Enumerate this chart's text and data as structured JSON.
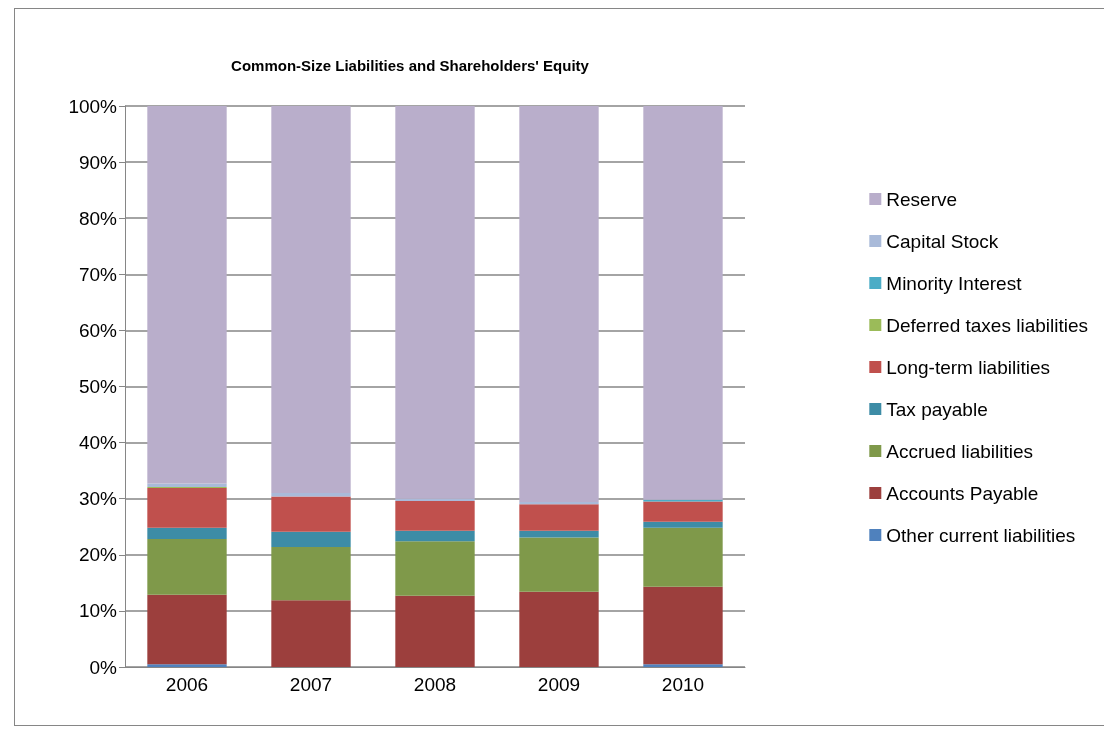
{
  "chart_data": {
    "type": "bar",
    "stacked": true,
    "title": "Common-Size Liabilities and Shareholders' Equity",
    "categories": [
      "2006",
      "2007",
      "2008",
      "2009",
      "2010"
    ],
    "series": [
      {
        "name": "Other current liabilities",
        "color": "#4f81bd",
        "values": [
          0.5,
          0,
          0,
          0,
          0.5
        ]
      },
      {
        "name": "Accounts Payable",
        "color": "#9c3f3d",
        "values": [
          12.4,
          11.9,
          12.7,
          13.4,
          13.8
        ]
      },
      {
        "name": "Accrued liabilities",
        "color": "#7f994a",
        "values": [
          9.9,
          9.5,
          9.7,
          9.7,
          10.5
        ]
      },
      {
        "name": "Tax payable",
        "color": "#3d8ca6",
        "values": [
          2.0,
          2.7,
          1.9,
          1.2,
          1.1
        ]
      },
      {
        "name": "Long-term liabilities",
        "color": "#c0504d",
        "values": [
          7.1,
          6.3,
          5.3,
          4.7,
          3.6
        ]
      },
      {
        "name": "Deferred taxes liabilities",
        "color": "#9bbb59",
        "values": [
          0.2,
          0,
          0,
          0,
          0
        ]
      },
      {
        "name": "Minority Interest",
        "color": "#4bacc6",
        "values": [
          0,
          0,
          0,
          0,
          0.3
        ]
      },
      {
        "name": "Capital Stock",
        "color": "#a9bad9",
        "values": [
          0.6,
          0.6,
          0.4,
          0.4,
          null
        ]
      },
      {
        "name": "Reserve",
        "color": "#b9aecb",
        "values": [
          67.3,
          69.0,
          70.0,
          70.6,
          70.3
        ]
      }
    ],
    "ylim": [
      0,
      100
    ],
    "yticks": [
      {
        "value": 0,
        "label": "0%"
      },
      {
        "value": 10,
        "label": "10%"
      },
      {
        "value": 20,
        "label": "20%"
      },
      {
        "value": 30,
        "label": "30%"
      },
      {
        "value": 40,
        "label": "40%"
      },
      {
        "value": 50,
        "label": "50%"
      },
      {
        "value": 60,
        "label": "60%"
      },
      {
        "value": 70,
        "label": "70%"
      },
      {
        "value": 80,
        "label": "80%"
      },
      {
        "value": 90,
        "label": "90%"
      },
      {
        "value": 100,
        "label": "100%"
      }
    ],
    "grid": "y",
    "legend": "right"
  }
}
